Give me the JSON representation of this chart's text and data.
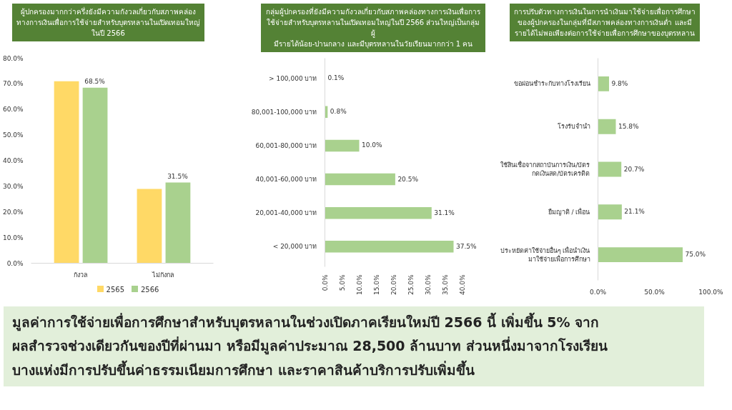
{
  "chart_data": [
    {
      "type": "bar",
      "title": "ผู้ปกครองมากกว่าครึ่งยังมีความกังวลเกี่ยวกับสภาพคล่อง\nทางการเงินเพื่อการใช้จ่ายสำหรับบุตรหลานในเปิดเทอมใหญ่\nในปี 2566",
      "categories": [
        "กังวล",
        "ไม่กังกล"
      ],
      "series": [
        {
          "name": "2565",
          "color": "#ffd966",
          "values": [
            71,
            29
          ]
        },
        {
          "name": "2566",
          "color": "#a9d18e",
          "values": [
            68.5,
            31.5
          ],
          "value_labels": [
            "68.5%",
            "31.5%"
          ]
        }
      ],
      "ylim": [
        0,
        80
      ],
      "yticks": [
        {
          "value": 0,
          "label": "0.0%"
        },
        {
          "value": 10,
          "label": "10.0%"
        },
        {
          "value": 20,
          "label": "20.0%"
        },
        {
          "value": 30,
          "label": "30.0%"
        },
        {
          "value": 40,
          "label": "40.0%"
        },
        {
          "value": 50,
          "label": "50.0%"
        },
        {
          "value": 60,
          "label": "60.0%"
        },
        {
          "value": 70,
          "label": "70.0%"
        },
        {
          "value": 80,
          "label": "80.0%"
        }
      ],
      "legend": "bottom"
    },
    {
      "type": "bar",
      "orientation": "horizontal",
      "title": "กลุ่มผู้ปกครองที่ยังมีความกังวลเกี่ยวกับสภาพคล่องทางการเงินเพื่อการ\nใช้จ่ายสำหรับบุตรหลานในเปิดเทอมใหญ่ในปี 2566 ส่วนใหญ่เป็นกลุ่มผู้\nมีรายได้น้อย-ปานกลาง และมีบุตรหลานในวัยเรียนมากกว่า 1 คน",
      "categories": [
        "> 100,000 บาท",
        "80,001-100,000 บาท",
        "60,001-80,000 บาท",
        "40,001-60,000 บาท",
        "20,001-40,000 บาท",
        "< 20,000 บาท"
      ],
      "values": [
        0.1,
        0.8,
        10.0,
        20.5,
        31.1,
        37.5
      ],
      "value_labels": [
        "0.1%",
        "0.8%",
        "10.0%",
        "20.5%",
        "31.1%",
        "37.5%"
      ],
      "color": "#a9d18e",
      "xlim": [
        0,
        40
      ],
      "xticks": [
        {
          "value": 0,
          "label": "0.0%"
        },
        {
          "value": 5,
          "label": "5.0%"
        },
        {
          "value": 10,
          "label": "10.0%"
        },
        {
          "value": 15,
          "label": "15.0%"
        },
        {
          "value": 20,
          "label": "20.0%"
        },
        {
          "value": 25,
          "label": "25.0%"
        },
        {
          "value": 30,
          "label": "30.0%"
        },
        {
          "value": 35,
          "label": "35.0%"
        },
        {
          "value": 40,
          "label": "40.0%"
        }
      ]
    },
    {
      "type": "bar",
      "orientation": "horizontal",
      "title": "การปรับตัวทางการเงินในการนำเงินมาใช้จ่ายเพื่อการศึกษา\nของผู้ปกครองในกลุ่มที่มีสภาพคล่องทางการเงินต่ำ และมี\nรายได้ไม่พอเพียงต่อการใช้จ่ายเพื่อการศึกษาของบุตรหลาน",
      "categories": [
        "ขอผ่อนชำระกับทางโรงเรียน",
        "โรงรับจำนำ",
        "ใช้สินเชื่อจากสถาบันการเงิน/บัตร\nกดเงินสด/บัตรเครดิต",
        "ยืมญาติ / เพื่อน",
        "ประหยัดค่าใช้จ่ายอื่นๆ เพื่อนำเงิน\nมาใช้จ่ายเพื่อการศึกษา"
      ],
      "values": [
        9.8,
        15.8,
        20.7,
        21.1,
        75.0
      ],
      "value_labels": [
        "9.8%",
        "15.8%",
        "20.7%",
        "21.1%",
        "75.0%"
      ],
      "color": "#a9d18e",
      "xlim": [
        0,
        100
      ],
      "xticks": [
        {
          "value": 0,
          "label": "0.0%"
        },
        {
          "value": 50,
          "label": "50.0%"
        },
        {
          "value": 100,
          "label": "100.0%"
        }
      ]
    },
    {
      "type": "other",
      "title": "มูลค่าการใช้จ่ายเพื่อการศึกษาสำหรับบุตรหลานในช่วงเปิดภาคเรียนใหม่ปี 2566 นี้ เพิ่มขึ้น 5% จาก\nผลสำรวจช่วงเดียวกันของปีที่ผ่านมา หรือมีมูลค่าประมาณ 28,500 ล้านบาท ส่วนหนึ่งมาจากโรงเรียน\nบางแห่งมีการปรับขึ้นค่าธรรมเนียมการศึกษา และราคาสินค้าบริการปรับเพิ่มขึ้น"
    }
  ]
}
